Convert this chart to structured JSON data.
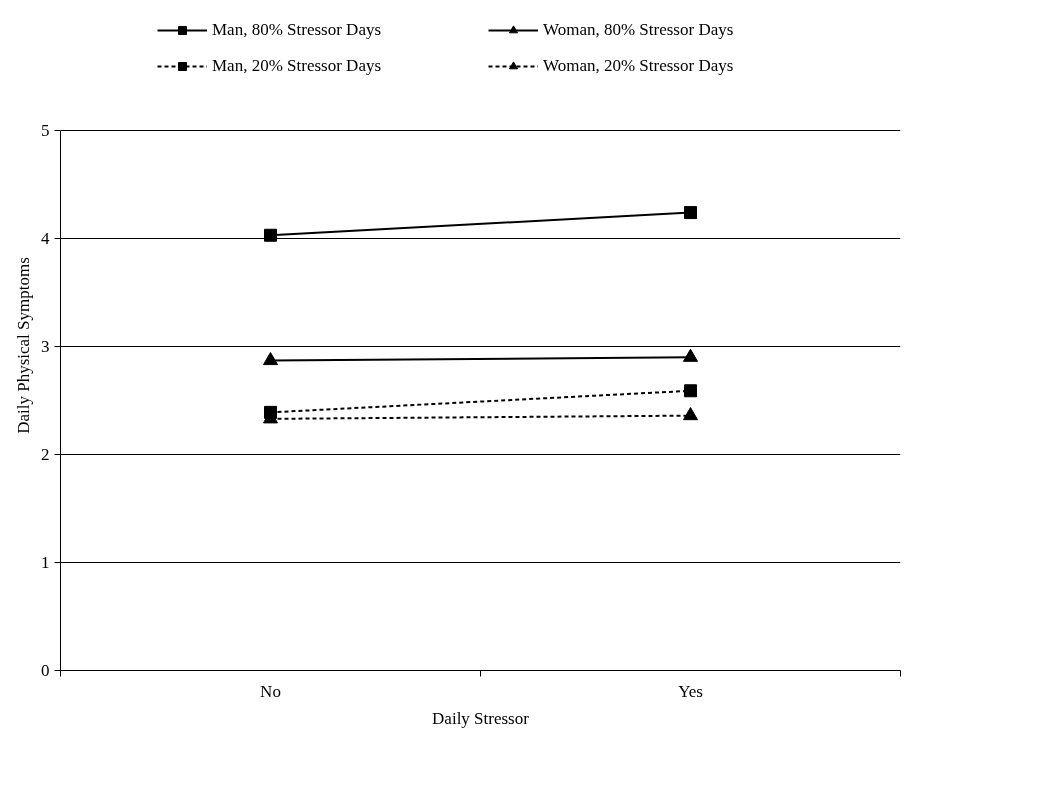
{
  "chart_data": {
    "type": "line",
    "xlabel": "Daily Stressor",
    "ylabel": "Daily Physical Symptoms",
    "categories": [
      "No",
      "Yes"
    ],
    "ylim": [
      0,
      5
    ],
    "yticks": [
      0,
      1,
      2,
      3,
      4,
      5
    ],
    "grid": "y",
    "legend": "top",
    "series": [
      {
        "name": "Man, 80% Stressor Days",
        "color": "#000000",
        "values": [
          4.03,
          4.24
        ],
        "marker": "square",
        "line_style": "solid"
      },
      {
        "name": "Woman, 80% Stressor Days",
        "color": "#000000",
        "values": [
          2.87,
          2.9
        ],
        "marker": "triangle",
        "line_style": "solid"
      },
      {
        "name": "Man, 20% Stressor Days",
        "color": "#000000",
        "values": [
          2.39,
          2.59
        ],
        "marker": "square",
        "line_style": "dashed"
      },
      {
        "name": "Woman, 20% Stressor Days",
        "color": "#000000",
        "values": [
          2.33,
          2.36
        ],
        "marker": "triangle",
        "line_style": "dashed"
      }
    ]
  }
}
